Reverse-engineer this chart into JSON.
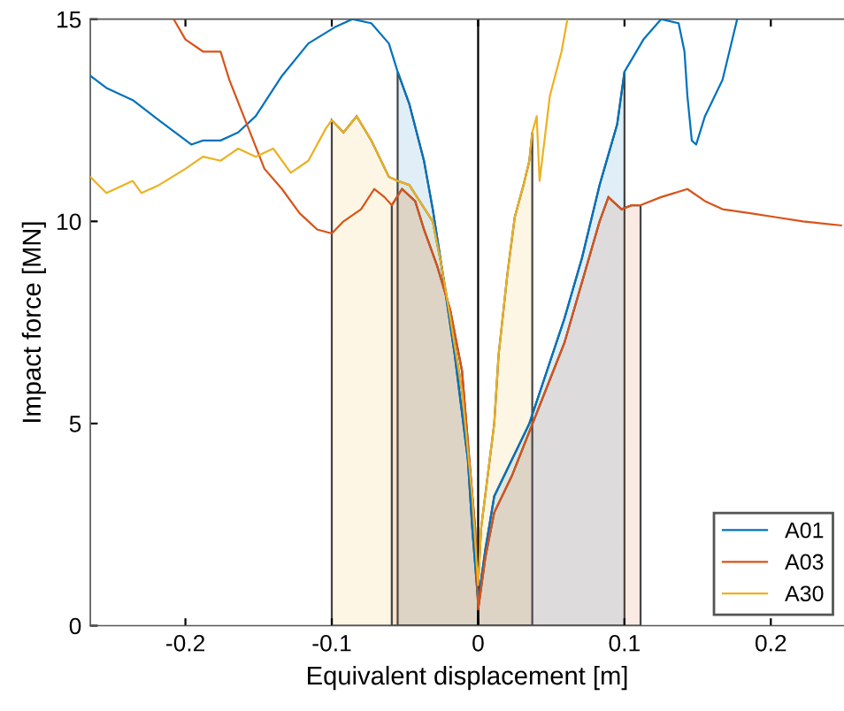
{
  "chart_data": {
    "type": "line",
    "xlabel": "Equivalent displacement [m]",
    "ylabel": "Impact force [MN]",
    "xlim": [
      -0.265,
      0.25
    ],
    "ylim": [
      0,
      15
    ],
    "xticks": [
      -0.2,
      -0.1,
      0,
      0.1,
      0.2
    ],
    "yticks": [
      0,
      5,
      10,
      15
    ],
    "grid": false,
    "legend": "bottom right",
    "ref_lines": [
      {
        "axis": "x",
        "value": 0,
        "color": "#000000"
      }
    ],
    "series": [
      {
        "name": "A01",
        "color": "#0072bd",
        "x": [
          -0.265,
          -0.254,
          -0.236,
          -0.218,
          -0.196,
          -0.188,
          -0.176,
          -0.164,
          -0.152,
          -0.134,
          -0.116,
          -0.098,
          -0.086,
          -0.073,
          -0.061,
          -0.055,
          -0.047,
          -0.037,
          -0.031,
          -0.025,
          -0.016,
          -0.007,
          -0.004,
          0,
          0.005,
          0.011,
          0.023,
          0.035,
          0.047,
          0.059,
          0.071,
          0.083,
          0.095,
          0.1,
          0.113,
          0.125,
          0.137,
          0.141,
          0.143,
          0.146,
          0.149,
          0.155,
          0.167,
          0.173,
          0.177
        ],
        "values": [
          13.6,
          13.3,
          13.0,
          12.5,
          11.9,
          12.0,
          12.0,
          12.2,
          12.6,
          13.6,
          14.4,
          14.8,
          15.0,
          14.9,
          14.4,
          13.7,
          12.9,
          11.5,
          10.3,
          8.9,
          6.7,
          4.1,
          2.4,
          0.6,
          1.9,
          3.2,
          4.1,
          5.0,
          6.3,
          7.6,
          9.1,
          10.9,
          12.4,
          13.7,
          14.5,
          15.0,
          14.9,
          14.2,
          13.1,
          12.0,
          11.9,
          12.6,
          13.5,
          14.4,
          15.0
        ]
      },
      {
        "name": "A03",
        "color": "#d95319",
        "x": [
          -0.208,
          -0.2,
          -0.188,
          -0.176,
          -0.17,
          -0.158,
          -0.146,
          -0.134,
          -0.122,
          -0.11,
          -0.1,
          -0.092,
          -0.08,
          -0.071,
          -0.064,
          -0.059,
          -0.052,
          -0.043,
          -0.037,
          -0.028,
          -0.019,
          -0.011,
          -0.006,
          -0.002,
          0,
          0.005,
          0.011,
          0.023,
          0.035,
          0.047,
          0.059,
          0.071,
          0.083,
          0.089,
          0.098,
          0.105,
          0.111,
          0.125,
          0.143,
          0.155,
          0.167,
          0.186,
          0.204,
          0.222,
          0.248
        ],
        "values": [
          15.0,
          14.5,
          14.2,
          14.2,
          13.5,
          12.4,
          11.3,
          10.8,
          10.2,
          9.8,
          9.7,
          10.0,
          10.3,
          10.8,
          10.6,
          10.4,
          10.8,
          10.5,
          9.8,
          8.9,
          7.8,
          6.3,
          4.1,
          2.4,
          0.4,
          1.7,
          2.8,
          3.7,
          4.8,
          5.9,
          7.0,
          8.5,
          10.0,
          10.6,
          10.3,
          10.4,
          10.4,
          10.6,
          10.8,
          10.5,
          10.3,
          10.2,
          10.1,
          10.0,
          9.9
        ]
      },
      {
        "name": "A30",
        "color": "#edb120",
        "x": [
          -0.265,
          -0.254,
          -0.236,
          -0.23,
          -0.218,
          -0.2,
          -0.188,
          -0.176,
          -0.164,
          -0.152,
          -0.14,
          -0.128,
          -0.116,
          -0.104,
          -0.1,
          -0.092,
          -0.083,
          -0.073,
          -0.061,
          -0.055,
          -0.047,
          -0.031,
          -0.025,
          -0.019,
          -0.011,
          -0.004,
          0,
          0.002,
          0.011,
          0.014,
          0.02,
          0.025,
          0.031,
          0.035,
          0.037,
          0.04,
          0.042,
          0.046,
          0.049,
          0.057,
          0.061
        ],
        "values": [
          11.1,
          10.7,
          11.0,
          10.7,
          10.9,
          11.3,
          11.6,
          11.5,
          11.8,
          11.6,
          11.8,
          11.2,
          11.5,
          12.3,
          12.5,
          12.2,
          12.6,
          12.0,
          11.1,
          11.0,
          10.9,
          10.0,
          8.9,
          7.6,
          5.8,
          3.2,
          1.0,
          2.4,
          5.0,
          6.7,
          8.7,
          10.1,
          10.9,
          11.5,
          12.2,
          12.6,
          11.0,
          12.2,
          13.1,
          14.2,
          15.0
        ]
      },
      {
        "type": "area",
        "color": "#edb120",
        "x": [
          -0.1,
          -0.092,
          -0.083,
          -0.073,
          -0.061,
          -0.055,
          -0.047,
          -0.031,
          -0.025,
          -0.019,
          -0.011,
          -0.004,
          0
        ],
        "values": [
          12.5,
          12.2,
          12.6,
          12.0,
          11.1,
          11.0,
          10.9,
          10.0,
          8.9,
          7.6,
          5.8,
          3.2,
          1.0
        ]
      },
      {
        "type": "area",
        "color": "#edb120",
        "x": [
          0,
          0.002,
          0.011,
          0.014,
          0.02,
          0.025,
          0.031,
          0.035,
          0.037
        ],
        "values": [
          1.0,
          2.4,
          5.0,
          6.7,
          8.7,
          10.1,
          10.9,
          11.5,
          12.2
        ]
      },
      {
        "type": "area",
        "color": "#0072bd",
        "x": [
          -0.055,
          -0.047,
          -0.037,
          -0.031,
          -0.025,
          -0.016,
          -0.007,
          -0.004,
          0
        ],
        "values": [
          13.7,
          12.9,
          11.5,
          10.3,
          8.9,
          6.7,
          4.1,
          2.4,
          0.6
        ]
      },
      {
        "type": "area",
        "color": "#0072bd",
        "x": [
          0,
          0.005,
          0.011,
          0.023,
          0.035,
          0.047,
          0.059,
          0.071,
          0.083,
          0.095,
          0.1
        ],
        "values": [
          0.6,
          1.9,
          3.2,
          4.1,
          5.0,
          6.3,
          7.6,
          9.1,
          10.9,
          12.4,
          13.7
        ]
      },
      {
        "type": "area",
        "color": "#d95319",
        "x": [
          -0.059,
          -0.052,
          -0.043,
          -0.037,
          -0.028,
          -0.019,
          -0.011,
          -0.006,
          -0.002,
          0
        ],
        "values": [
          10.4,
          10.8,
          10.5,
          9.8,
          8.9,
          7.8,
          6.3,
          4.1,
          2.4,
          0.4
        ]
      },
      {
        "type": "area",
        "color": "#d95319",
        "x": [
          0,
          0.005,
          0.011,
          0.023,
          0.035,
          0.047,
          0.059,
          0.071,
          0.083,
          0.089,
          0.098,
          0.105,
          0.111
        ],
        "values": [
          0.4,
          1.7,
          2.8,
          3.7,
          4.8,
          5.9,
          7.0,
          8.5,
          10.0,
          10.6,
          10.3,
          10.4,
          10.4
        ]
      }
    ]
  }
}
